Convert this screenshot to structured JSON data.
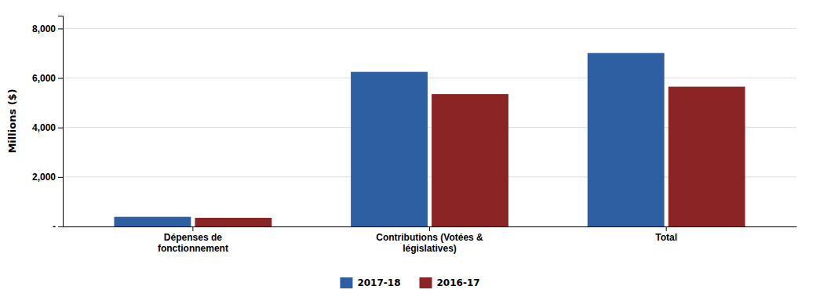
{
  "chart_data": {
    "type": "bar",
    "y_label": "Millions ($)",
    "categories": [
      "Dépenses de\nfonctionnement",
      "Contributions (Votées &\nlégislatives)",
      "Total"
    ],
    "series": [
      {
        "name": "2017-18",
        "color": "#2E5FA3",
        "values": [
          390,
          6250,
          7010
        ]
      },
      {
        "name": "2016-17",
        "color": "#8B2525",
        "values": [
          350,
          5350,
          5650
        ]
      }
    ],
    "ylim": [
      0,
      8520
    ],
    "yticks": [
      {
        "value": 0,
        "label": "-"
      },
      {
        "value": 2000,
        "label": "2,000"
      },
      {
        "value": 4000,
        "label": "4,000"
      },
      {
        "value": 6000,
        "label": "6,000"
      },
      {
        "value": 8000,
        "label": "8,000"
      }
    ],
    "grid": true,
    "legend": "bottom"
  }
}
